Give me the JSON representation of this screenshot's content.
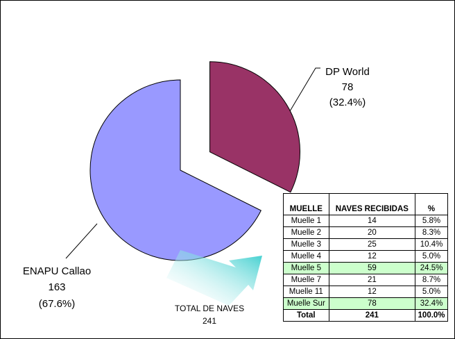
{
  "chart_data": {
    "type": "pie",
    "categories": [
      "DP World",
      "ENAPU Callao"
    ],
    "values": [
      78,
      163
    ],
    "percent_labels": [
      "(32.4%)",
      "(67.6%)"
    ],
    "colors": [
      "#993366",
      "#9999ff"
    ],
    "annotation": {
      "title": "TOTAL DE NAVES",
      "value": "241"
    },
    "table": {
      "header": [
        "MUELLE",
        "NAVES RECIBIDAS",
        "%"
      ],
      "rows": [
        [
          "Muelle 1",
          "14",
          "5.8%"
        ],
        [
          "Muelle 2",
          "20",
          "8.3%"
        ],
        [
          "Muelle 3",
          "25",
          "10.4%"
        ],
        [
          "Muelle 4",
          "12",
          "5.0%"
        ],
        [
          "Muelle 5",
          "59",
          "24.5%"
        ],
        [
          "Muelle 7",
          "21",
          "8.7%"
        ],
        [
          "Muelle 11",
          "12",
          "5.0%"
        ],
        [
          "Muelle Sur",
          "78",
          "32.4%"
        ],
        [
          "Total",
          "241",
          "100.0%"
        ]
      ]
    }
  }
}
